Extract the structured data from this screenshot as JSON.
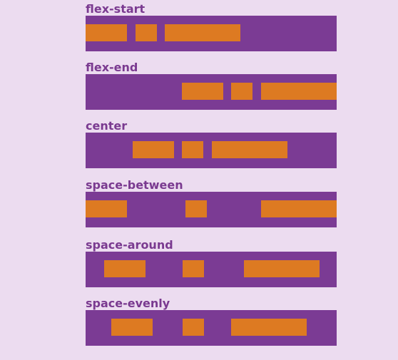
{
  "title": "",
  "sections": [
    {
      "label": "flex-start"
    },
    {
      "label": "flex-end"
    },
    {
      "label": "center"
    },
    {
      "label": "space-between"
    },
    {
      "label": "space-around"
    },
    {
      "label": "space-evenly"
    }
  ],
  "colors": {
    "page_background": "#ecdcf0",
    "container": "#7b3b94",
    "item": "#dd7a22",
    "label_text": "#7a3a90"
  }
}
